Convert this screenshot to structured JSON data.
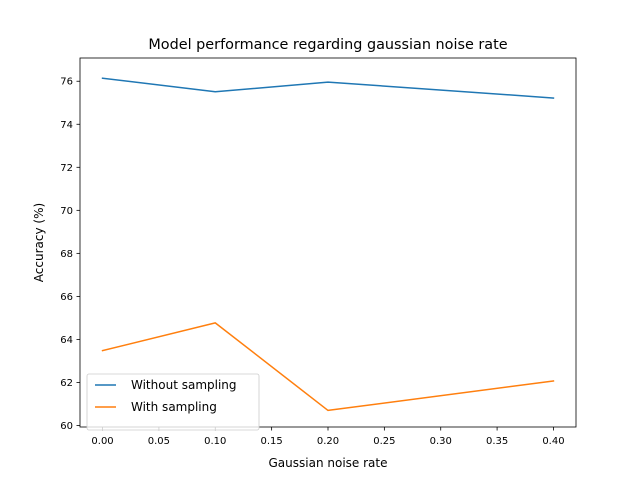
{
  "chart_data": {
    "type": "line",
    "title": "Model performance regarding gaussian noise rate",
    "xlabel": "Gaussian noise rate",
    "ylabel": "Accuracy (%)",
    "x": [
      0.0,
      0.1,
      0.2,
      0.4
    ],
    "xlim": [
      -0.02,
      0.42
    ],
    "ylim": [
      59.93,
      77.08
    ],
    "xticks": [
      0.0,
      0.05,
      0.1,
      0.15,
      0.2,
      0.25,
      0.3,
      0.35,
      0.4
    ],
    "xtick_labels": [
      "0.00",
      "0.05",
      "0.10",
      "0.15",
      "0.20",
      "0.25",
      "0.30",
      "0.35",
      "0.40"
    ],
    "yticks": [
      60,
      62,
      64,
      66,
      68,
      70,
      72,
      74,
      76
    ],
    "ytick_labels": [
      "60",
      "62",
      "64",
      "66",
      "68",
      "70",
      "72",
      "74",
      "76"
    ],
    "grid": false,
    "legend_position": "lower-left",
    "series": [
      {
        "name": "Without sampling",
        "color": "#1f77b4",
        "values": [
          76.14,
          75.51,
          75.96,
          75.22
        ]
      },
      {
        "name": "With sampling",
        "color": "#ff7f0e",
        "values": [
          63.48,
          64.77,
          60.7,
          62.07
        ]
      }
    ]
  }
}
